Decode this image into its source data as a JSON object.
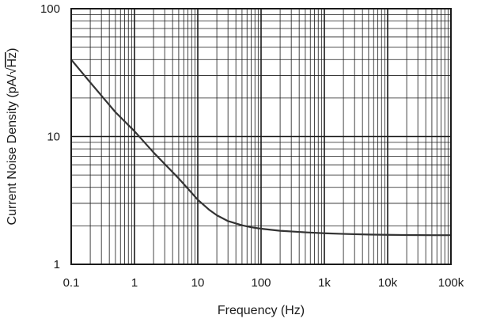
{
  "chart_data": {
    "type": "line",
    "title": "",
    "xlabel": "Frequency (Hz)",
    "ylabel_prefix": "Current Noise Density (pA/",
    "ylabel_radical": "√",
    "ylabel_radicand": "Hz",
    "ylabel_suffix": ")",
    "x_scale": "log",
    "y_scale": "log",
    "xlim": [
      0.1,
      100000
    ],
    "ylim": [
      1,
      100
    ],
    "grid": true,
    "x_ticks": [
      {
        "value": 0.1,
        "label": "0.1"
      },
      {
        "value": 1,
        "label": "1"
      },
      {
        "value": 10,
        "label": "10"
      },
      {
        "value": 100,
        "label": "100"
      },
      {
        "value": 1000,
        "label": "1k"
      },
      {
        "value": 10000,
        "label": "10k"
      },
      {
        "value": 100000,
        "label": "100k"
      }
    ],
    "y_ticks": [
      {
        "value": 1,
        "label": "1"
      },
      {
        "value": 10,
        "label": "10"
      },
      {
        "value": 100,
        "label": "100"
      }
    ],
    "series": [
      {
        "x": [
          0.1,
          0.2,
          0.5,
          1,
          2,
          5,
          10,
          15,
          20,
          30,
          50,
          70,
          100,
          200,
          500,
          1000,
          2000,
          5000,
          10000,
          20000,
          50000,
          100000
        ],
        "y": [
          40,
          26.5,
          15.5,
          11,
          7.5,
          4.7,
          3.2,
          2.68,
          2.42,
          2.18,
          2.02,
          1.95,
          1.9,
          1.83,
          1.78,
          1.75,
          1.73,
          1.71,
          1.7,
          1.695,
          1.69,
          1.69
        ]
      }
    ],
    "line_color": "#333333",
    "grid_color": "#1a1a1a"
  }
}
